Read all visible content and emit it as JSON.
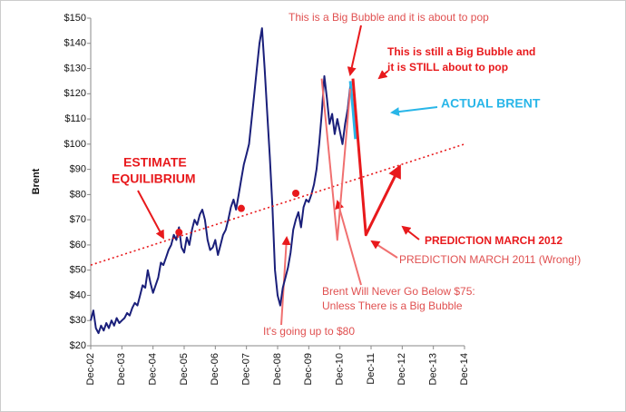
{
  "chart_data": {
    "type": "line",
    "y_label": "Brent",
    "xlim": [
      "2002-12",
      "2014-12"
    ],
    "xticks": [
      {
        "value": "2002-12",
        "label": "Dec-02"
      },
      {
        "value": "2003-12",
        "label": "Dec-03"
      },
      {
        "value": "2004-12",
        "label": "Dec-04"
      },
      {
        "value": "2005-12",
        "label": "Dec-05"
      },
      {
        "value": "2006-12",
        "label": "Dec-06"
      },
      {
        "value": "2007-12",
        "label": "Dec-07"
      },
      {
        "value": "2008-12",
        "label": "Dec-08"
      },
      {
        "value": "2009-12",
        "label": "Dec-09"
      },
      {
        "value": "2010-12",
        "label": "Dec-10"
      },
      {
        "value": "2011-12",
        "label": "Dec-11"
      },
      {
        "value": "2012-12",
        "label": "Dec-12"
      },
      {
        "value": "2013-12",
        "label": "Dec-13"
      },
      {
        "value": "2014-12",
        "label": "Dec-14"
      }
    ],
    "ylim": [
      20,
      150
    ],
    "yticks": [
      {
        "value": 20,
        "label": "$20"
      },
      {
        "value": 30,
        "label": "$30"
      },
      {
        "value": 40,
        "label": "$40"
      },
      {
        "value": 50,
        "label": "$50"
      },
      {
        "value": 60,
        "label": "$60"
      },
      {
        "value": 70,
        "label": "$70"
      },
      {
        "value": 80,
        "label": "$80"
      },
      {
        "value": 90,
        "label": "$90"
      },
      {
        "value": 100,
        "label": "$100"
      },
      {
        "value": 110,
        "label": "$110"
      },
      {
        "value": 120,
        "label": "$120"
      },
      {
        "value": 130,
        "label": "$130"
      },
      {
        "value": 140,
        "label": "$140"
      },
      {
        "value": 150,
        "label": "$150"
      }
    ],
    "series": [
      {
        "color": "#1a1f7a",
        "width": 2,
        "x": [
          "2002-12",
          "2003-01",
          "2003-02",
          "2003-03",
          "2003-04",
          "2003-05",
          "2003-06",
          "2003-07",
          "2003-08",
          "2003-09",
          "2003-10",
          "2003-11",
          "2003-12",
          "2004-01",
          "2004-02",
          "2004-03",
          "2004-04",
          "2004-05",
          "2004-06",
          "2004-07",
          "2004-08",
          "2004-09",
          "2004-10",
          "2004-11",
          "2004-12",
          "2005-01",
          "2005-02",
          "2005-03",
          "2005-04",
          "2005-05",
          "2005-06",
          "2005-07",
          "2005-08",
          "2005-09",
          "2005-10",
          "2005-11",
          "2005-12",
          "2006-01",
          "2006-02",
          "2006-03",
          "2006-04",
          "2006-05",
          "2006-06",
          "2006-07",
          "2006-08",
          "2006-09",
          "2006-10",
          "2006-11",
          "2006-12",
          "2007-01",
          "2007-02",
          "2007-03",
          "2007-04",
          "2007-05",
          "2007-06",
          "2007-07",
          "2007-08",
          "2007-09",
          "2007-10",
          "2007-11",
          "2007-12",
          "2008-01",
          "2008-02",
          "2008-03",
          "2008-04",
          "2008-05",
          "2008-06",
          "2008-07",
          "2008-08",
          "2008-09",
          "2008-10",
          "2008-11",
          "2008-12",
          "2009-01",
          "2009-02",
          "2009-03",
          "2009-04",
          "2009-05",
          "2009-06",
          "2009-07",
          "2009-08",
          "2009-09",
          "2009-10",
          "2009-11",
          "2009-12",
          "2010-01",
          "2010-02",
          "2010-03",
          "2010-04",
          "2010-05",
          "2010-06",
          "2010-07",
          "2010-08",
          "2010-09",
          "2010-10",
          "2010-11",
          "2010-12",
          "2011-01",
          "2011-02",
          "2011-03",
          "2011-04"
        ],
        "values": [
          30,
          34,
          27,
          25,
          28,
          26,
          29,
          27,
          30,
          28,
          31,
          29,
          30,
          31,
          33,
          32,
          35,
          37,
          36,
          40,
          44,
          43,
          50,
          45,
          41,
          44,
          47,
          53,
          52,
          55,
          58,
          60,
          64,
          62,
          67,
          59,
          57,
          63,
          60,
          66,
          70,
          68,
          72,
          74,
          70,
          62,
          58,
          59,
          62,
          56,
          60,
          64,
          66,
          70,
          75,
          78,
          74,
          80,
          86,
          92,
          96,
          100,
          110,
          120,
          130,
          140,
          146,
          130,
          112,
          95,
          75,
          50,
          40,
          36,
          43,
          47,
          51,
          57,
          66,
          70,
          73,
          67,
          75,
          78,
          77,
          80,
          84,
          90,
          100,
          112,
          127,
          118,
          108,
          112,
          104,
          110,
          105,
          100,
          108,
          114,
          123
        ]
      },
      {
        "color": "#29b6e8",
        "width": 3,
        "x": [
          "2011-04",
          "2011-05",
          "2011-06"
        ],
        "values": [
          125,
          114,
          102
        ]
      },
      {
        "color": "#e8191c",
        "width": 1.6,
        "dash": true,
        "x": [
          "2002-12",
          "2014-12"
        ],
        "values": [
          52,
          100
        ]
      },
      {
        "color": "#f07070",
        "width": 2,
        "x": [
          "2010-05",
          "2010-11",
          "2011-04"
        ],
        "values": [
          126,
          62,
          122
        ]
      },
      {
        "color": "#e8191c",
        "width": 3,
        "arrow": true,
        "x": [
          "2011-05",
          "2011-10",
          "2012-11"
        ],
        "values": [
          126,
          64,
          91
        ]
      },
      {
        "color": "#e8191c",
        "mode": "markers",
        "x": [
          "2005-10",
          "2007-10",
          "2009-07"
        ],
        "values": [
          65,
          74.5,
          80.5
        ]
      }
    ],
    "annotations": [
      "This is a Big Bubble and it is about to  pop",
      "This is still a Big Bubble and",
      "it is STILL about to  pop",
      "ACTUAL BRENT",
      "ESTIMATE",
      "EQUILIBRIUM",
      "PREDICTION MARCH 2012",
      "PREDICTION MARCH 2011 (Wrong!)",
      "Brent Will Never Go Below $75:",
      "Unless There is a Big Bubble",
      "It's going up to $80"
    ]
  }
}
